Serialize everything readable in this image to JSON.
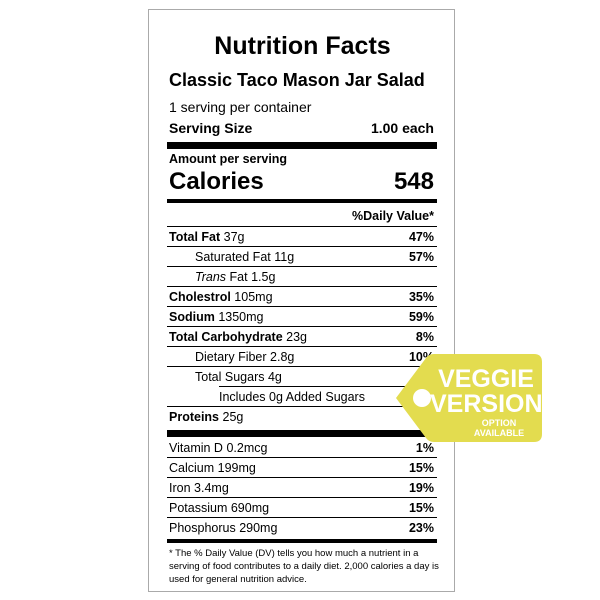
{
  "label": {
    "title": "Nutrition Facts",
    "product_name": "Classic Taco Mason Jar Salad",
    "servings_per_container": "1 serving per container",
    "serving_size_label": "Serving Size",
    "serving_size_value": "1.00 each",
    "amount_per_serving": "Amount per serving",
    "calories_label": "Calories",
    "calories_value": "548",
    "daily_value_header": "%Daily Value*",
    "nutrients": [
      {
        "name": "Total Fat",
        "amount": "37g",
        "dv": "47%"
      },
      {
        "name": "Saturated Fat",
        "amount": "11g",
        "dv": "57%"
      },
      {
        "name": "Trans",
        "name_suffix": "Fat",
        "amount": "1.5g",
        "dv": ""
      },
      {
        "name": "Cholestrol",
        "amount": "105mg",
        "dv": "35%"
      },
      {
        "name": "Sodium",
        "amount": "1350mg",
        "dv": "59%"
      },
      {
        "name": "Total Carbohydrate",
        "amount": "23g",
        "dv": "8%"
      },
      {
        "name": "Dietary Fiber",
        "amount": "2.8g",
        "dv": "10%"
      },
      {
        "name": "Total Sugars",
        "amount": "4g",
        "dv": ""
      },
      {
        "name": "Includes",
        "amount": "0g Added Sugars",
        "dv": ""
      },
      {
        "name": "Proteins",
        "amount": "25g",
        "dv": ""
      }
    ],
    "vitamins": [
      {
        "name": "Vitamin D",
        "amount": "0.2mcg",
        "dv": "1%"
      },
      {
        "name": "Calcium",
        "amount": "199mg",
        "dv": "15%"
      },
      {
        "name": "Iron",
        "amount": "3.4mg",
        "dv": "19%"
      },
      {
        "name": "Potassium",
        "amount": "690mg",
        "dv": "15%"
      },
      {
        "name": "Phosphorus",
        "amount": "290mg",
        "dv": "23%"
      }
    ],
    "footnote": "* The % Daily Value (DV) tells you how much a nutrient in a serving of food contributes to a daily diet. 2,000 calories a day is used for general nutrition advice."
  },
  "badge": {
    "line1": "VEGGIE",
    "line2": "VERSION",
    "line3": "OPTION",
    "line4": "AVAILABLE",
    "color": "#e3dc4f",
    "text_color": "#ffffff"
  }
}
